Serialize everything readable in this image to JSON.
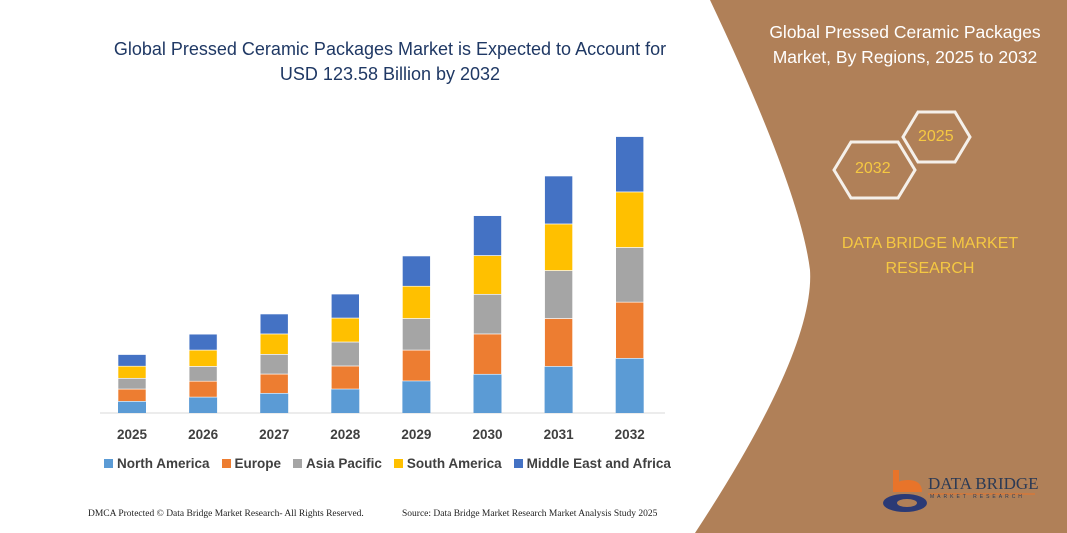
{
  "title": "Global Pressed Ceramic Packages Market is Expected to Account for USD 123.58 Billion by 2032",
  "side_panel": {
    "title": "Global Pressed Ceramic Packages Market, By Regions, 2025 to 2032",
    "hex_start": "2025",
    "hex_end": "2032",
    "brand": "DATA BRIDGE MARKET RESEARCH",
    "logo_text": "DATA BRIDGE",
    "logo_sub": "MARKET RESEARCH",
    "color": "#b08058"
  },
  "footer": {
    "left": "DMCA Protected © Data Bridge Market Research- All Rights Reserved.",
    "right": "Source: Data Bridge Market Research Market Analysis Study 2025"
  },
  "chart_data": {
    "type": "bar",
    "stacked": true,
    "title": "Global Pressed Ceramic Packages Market is Expected to Account for USD 123.58 Billion by 2032",
    "categories": [
      "2025",
      "2026",
      "2027",
      "2028",
      "2029",
      "2030",
      "2031",
      "2032"
    ],
    "series": [
      {
        "name": "North America",
        "color": "#5b9bd5",
        "values": [
          5.2,
          7.1,
          8.8,
          10.7,
          14.3,
          17.3,
          20.8,
          24.4
        ]
      },
      {
        "name": "Europe",
        "color": "#ed7d31",
        "values": [
          5.5,
          7.1,
          8.6,
          10.3,
          13.8,
          18.0,
          21.4,
          25.1
        ]
      },
      {
        "name": "Asia Pacific",
        "color": "#a5a5a5",
        "values": [
          4.8,
          6.6,
          8.8,
          10.7,
          14.1,
          17.7,
          21.4,
          24.4
        ]
      },
      {
        "name": "South America",
        "color": "#ffc000",
        "values": [
          5.4,
          7.3,
          9.1,
          10.7,
          14.4,
          17.3,
          20.8,
          24.8
        ]
      },
      {
        "name": "Middle East and Africa",
        "color": "#4472c4",
        "values": [
          5.2,
          7.1,
          8.9,
          10.7,
          13.5,
          17.8,
          21.4,
          24.7
        ]
      }
    ],
    "y_axis_shown": false,
    "grid": false,
    "legend": "bottom"
  }
}
